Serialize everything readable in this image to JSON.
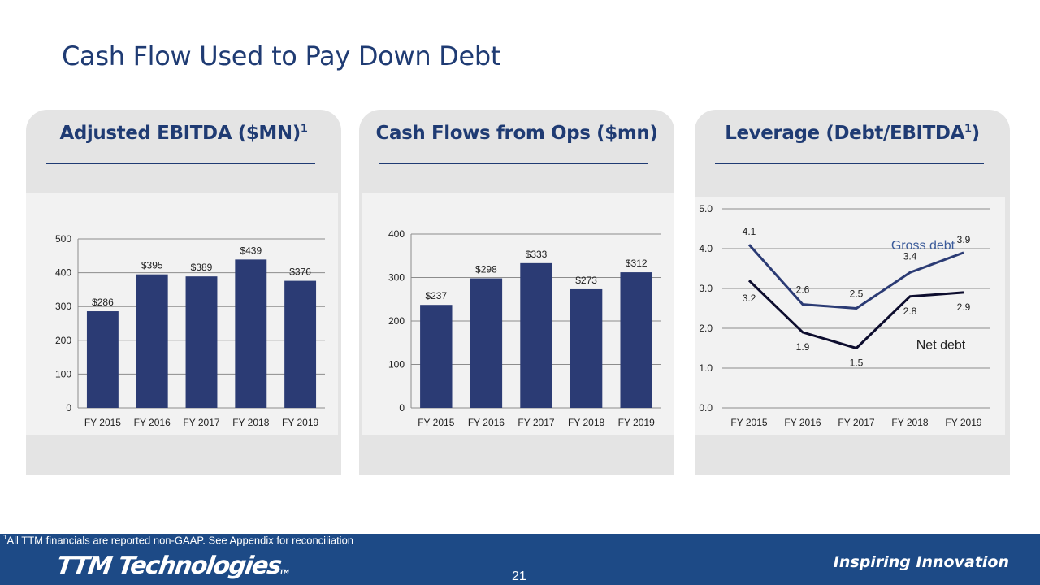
{
  "slide": {
    "title": "Cash Flow Used to Pay Down Debt",
    "footnote_mark": "1",
    "footnote": "All TTM financials are reported non-GAAP.  See Appendix for reconciliation",
    "brand": "TTM Technologies",
    "brand_tm": "TM",
    "tagline": "Inspiring Innovation",
    "page_number": "21"
  },
  "panels": [
    {
      "title": "Adjusted EBITDA ($MN)",
      "title_sup": "1"
    },
    {
      "title": "Cash Flows from Ops ($mn)",
      "title_sup": ""
    },
    {
      "title": "Leverage (Debt/EBITDA",
      "title_sup": "1",
      "title_suffix": ")"
    }
  ],
  "colors": {
    "bar": "#2b3b74",
    "gross_debt": "#2b3b74",
    "net_debt": "#0d0d2e",
    "title": "#1f3b73",
    "footer": "#1d4a86"
  },
  "chart_data": [
    {
      "type": "bar",
      "title": "Adjusted EBITDA ($MN)",
      "categories": [
        "FY 2015",
        "FY 2016",
        "FY 2017",
        "FY 2018",
        "FY 2019"
      ],
      "values": [
        286,
        395,
        389,
        439,
        376
      ],
      "data_labels": [
        "$286",
        "$395",
        "$389",
        "$439",
        "$376"
      ],
      "ylim": [
        0,
        500
      ],
      "yticks": [
        0,
        100,
        200,
        300,
        400,
        500
      ],
      "ytick_labels": [
        "0",
        "100",
        "200",
        "300",
        "400",
        "500"
      ],
      "grid": true
    },
    {
      "type": "bar",
      "title": "Cash Flows from Ops ($mn)",
      "categories": [
        "FY 2015",
        "FY 2016",
        "FY 2017",
        "FY 2018",
        "FY 2019"
      ],
      "values": [
        237,
        298,
        333,
        273,
        312
      ],
      "data_labels": [
        "$237",
        "$298",
        "$333",
        "$273",
        "$312"
      ],
      "ylim": [
        0,
        400
      ],
      "yticks": [
        0,
        100,
        200,
        300,
        400
      ],
      "ytick_labels": [
        "0",
        "100",
        "200",
        "300",
        "400"
      ],
      "grid": true
    },
    {
      "type": "line",
      "title": "Leverage (Debt/EBITDA1)",
      "categories": [
        "FY 2015",
        "FY 2016",
        "FY 2017",
        "FY 2018",
        "FY 2019"
      ],
      "series": [
        {
          "name": "Gross debt",
          "values": [
            4.1,
            2.6,
            2.5,
            3.4,
            3.9
          ],
          "labels": [
            "4.1",
            "2.6",
            "2.5",
            "3.4",
            "3.9"
          ]
        },
        {
          "name": "Net debt",
          "values": [
            3.2,
            1.9,
            1.5,
            2.8,
            2.9
          ],
          "labels": [
            "3.2",
            "1.9",
            "1.5",
            "2.8",
            "2.9"
          ]
        }
      ],
      "ylim": [
        0,
        5
      ],
      "yticks": [
        0,
        1,
        2,
        3,
        4,
        5
      ],
      "ytick_labels": [
        "0.0",
        "1.0",
        "2.0",
        "3.0",
        "4.0",
        "5.0"
      ],
      "grid": true
    }
  ]
}
